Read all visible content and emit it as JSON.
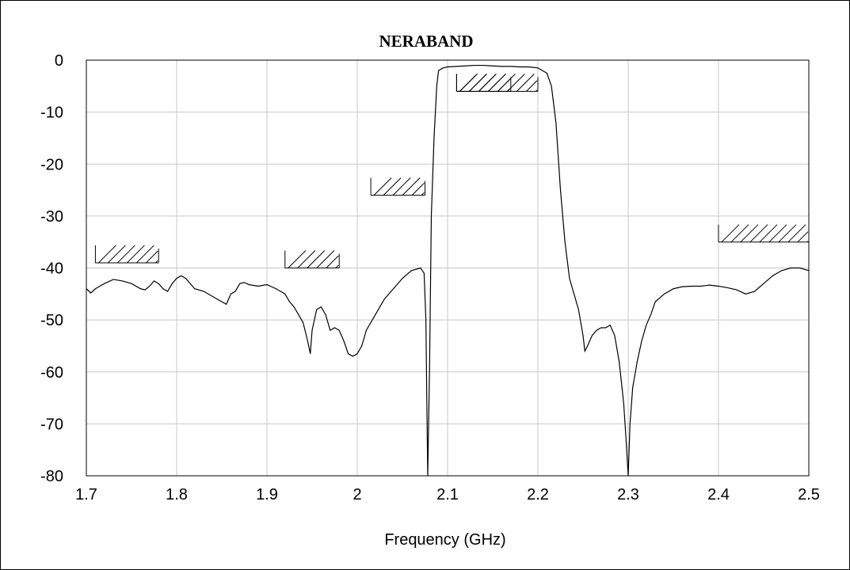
{
  "chart_data": {
    "type": "line",
    "title": "NERABAND",
    "xlabel": "Frequency (GHz)",
    "ylabel": "",
    "xlim": [
      1.7,
      2.5
    ],
    "ylim": [
      -80,
      0
    ],
    "grid": true,
    "x_ticks": [
      "1.7",
      "1.8",
      "1.9",
      "2",
      "2.1",
      "2.2",
      "2.3",
      "2.4",
      "2.5"
    ],
    "y_ticks": [
      "0",
      "-10",
      "-20",
      "-30",
      "-40",
      "-50",
      "-60",
      "-70",
      "-80"
    ],
    "series": [
      {
        "x": [
          1.7,
          1.705,
          1.71,
          1.715,
          1.72,
          1.73,
          1.74,
          1.75,
          1.76,
          1.765,
          1.77,
          1.775,
          1.78,
          1.785,
          1.79,
          1.795,
          1.8,
          1.805,
          1.81,
          1.82,
          1.83,
          1.84,
          1.85,
          1.855,
          1.86,
          1.865,
          1.87,
          1.875,
          1.88,
          1.89,
          1.9,
          1.91,
          1.915,
          1.92,
          1.925,
          1.93,
          1.935,
          1.94,
          1.945,
          1.948,
          1.95,
          1.955,
          1.96,
          1.965,
          1.97,
          1.975,
          1.98,
          1.985,
          1.99,
          1.995,
          2.0,
          2.005,
          2.01,
          2.02,
          2.03,
          2.04,
          2.05,
          2.06,
          2.07,
          2.074,
          2.076,
          2.077,
          2.078,
          2.08,
          2.082,
          2.085,
          2.088,
          2.09,
          2.095,
          2.1,
          2.11,
          2.12,
          2.13,
          2.14,
          2.15,
          2.16,
          2.17,
          2.18,
          2.19,
          2.2,
          2.21,
          2.215,
          2.22,
          2.225,
          2.23,
          2.235,
          2.24,
          2.245,
          2.25,
          2.252,
          2.255,
          2.26,
          2.265,
          2.27,
          2.275,
          2.28,
          2.285,
          2.29,
          2.295,
          2.298,
          2.3,
          2.302,
          2.305,
          2.31,
          2.315,
          2.32,
          2.325,
          2.33,
          2.34,
          2.35,
          2.36,
          2.37,
          2.38,
          2.39,
          2.4,
          2.41,
          2.42,
          2.43,
          2.44,
          2.45,
          2.46,
          2.47,
          2.48,
          2.49,
          2.5
        ],
        "y": [
          -44,
          -44.8,
          -44,
          -43.5,
          -43,
          -42.2,
          -42.5,
          -43,
          -44,
          -44.2,
          -43.5,
          -42.5,
          -43,
          -44,
          -44.5,
          -43,
          -42,
          -41.5,
          -42,
          -44,
          -44.5,
          -45.5,
          -46.5,
          -47,
          -45,
          -44.5,
          -43,
          -42.8,
          -43.2,
          -43.5,
          -43.2,
          -44,
          -44.5,
          -45,
          -46.5,
          -47.5,
          -49,
          -50.5,
          -54,
          -56.5,
          -52,
          -48,
          -47.5,
          -49,
          -52,
          -51.5,
          -52,
          -54,
          -56.5,
          -57,
          -56.5,
          -55,
          -52,
          -49,
          -46,
          -44,
          -42,
          -40.5,
          -40,
          -41,
          -50,
          -65,
          -80,
          -60,
          -30,
          -15,
          -5,
          -2,
          -1.5,
          -1.3,
          -1.2,
          -1.1,
          -1,
          -1,
          -1.1,
          -1.2,
          -1.2,
          -1.3,
          -1.3,
          -1.5,
          -2.5,
          -5,
          -12,
          -25,
          -35,
          -42,
          -45,
          -48,
          -53,
          -56,
          -55,
          -53,
          -52,
          -51.5,
          -51.5,
          -51,
          -53,
          -58,
          -66,
          -74,
          -80,
          -70,
          -63,
          -58,
          -54,
          -51,
          -49,
          -46.5,
          -45,
          -44,
          -43.6,
          -43.5,
          -43.5,
          -43.3,
          -43.5,
          -43.8,
          -44.2,
          -45,
          -44.5,
          -43,
          -41.5,
          -40.5,
          -40,
          -40,
          -40.5
        ]
      }
    ],
    "mask_bands": [
      {
        "x": [
          1.71,
          1.78
        ],
        "y": -39
      },
      {
        "x": [
          1.92,
          1.98
        ],
        "y": -40
      },
      {
        "x": [
          2.015,
          2.075
        ],
        "y": -26
      },
      {
        "x": [
          2.11,
          2.17
        ],
        "y": -6
      },
      {
        "x": [
          2.11,
          2.2
        ],
        "y": -6
      },
      {
        "x": [
          2.4,
          2.5
        ],
        "y": -35
      }
    ]
  }
}
